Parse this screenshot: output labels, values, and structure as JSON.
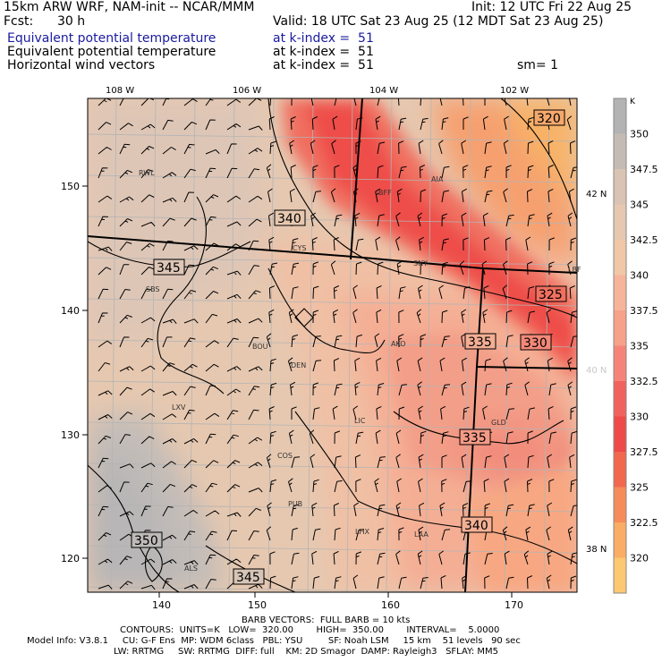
{
  "header": {
    "model": "15km ARW WRF, NAM-init -- NCAR/MMM",
    "init": "Init: 12 UTC Fri 22 Aug 25",
    "fcst_label": "Fcst:",
    "fcst_value": "30 h",
    "valid": "Valid: 18 UTC Sat 23 Aug 25 (12 MDT Sat 23 Aug 25)",
    "fields": [
      {
        "name": "Equivalent potential temperature",
        "level": "at k-index =  51",
        "color": "#1a1aa0"
      },
      {
        "name": "Equivalent potential temperature",
        "level": "at k-index =  51",
        "color": "#000000"
      },
      {
        "name": "Horizontal wind vectors",
        "level": "at k-index =  51",
        "color": "#000000"
      }
    ],
    "smoothing": "sm= 1"
  },
  "axes": {
    "lon_labels": [
      "108 W",
      "106 W",
      "104 W",
      "102 W"
    ],
    "lat_labels": [
      "42 N",
      "40 N",
      "38 N"
    ],
    "x_ticks": [
      "140",
      "150",
      "160",
      "170"
    ],
    "y_ticks": [
      "150",
      "140",
      "130",
      "120"
    ]
  },
  "stations": [
    "RWL",
    "BFF",
    "AIA",
    "CYS",
    "SNY",
    "LBF",
    "SBS",
    "BOU",
    "DEN",
    "AKO",
    "LXV",
    "LIC",
    "GLD",
    "COS",
    "PUB",
    "LHX",
    "LAA",
    "ALS"
  ],
  "contour_labels": [
    "320",
    "340",
    "345",
    "325",
    "335",
    "330",
    "335",
    "340",
    "350",
    "345"
  ],
  "colorbar": {
    "unit": "K",
    "levels": [
      "350",
      "347.5",
      "345",
      "342.5",
      "340",
      "337.5",
      "335",
      "332.5",
      "330",
      "327.5",
      "325",
      "322.5",
      "320"
    ],
    "colors": [
      "#b3b3b3",
      "#c4bcb4",
      "#d8c3b4",
      "#e6c8b0",
      "#f0c8a8",
      "#f6b49a",
      "#f7a08a",
      "#f6837a",
      "#f1625f",
      "#ee4a4a",
      "#f2684f",
      "#f68c5a",
      "#f9ad65",
      "#fcc872"
    ]
  },
  "footer": {
    "barb": "BARB VECTORS:  FULL BARB = 10 kts",
    "contours": "CONTOURS:  UNITS=K   LOW=  320.00        HIGH=  350.00        INTERVAL=    5.0000",
    "model_info": "Model Info: V3.8.1     CU: G-F Ens  MP: WDM 6class   PBL: YSU         SF: Noah LSM     15 km    51 levels   90 sec",
    "model_info2": "LW: RRTMG     SW: RRTMG  DIFF: full    KM: 2D Smagor  DAMP: Rayleigh3   SFLAY: MM5"
  }
}
